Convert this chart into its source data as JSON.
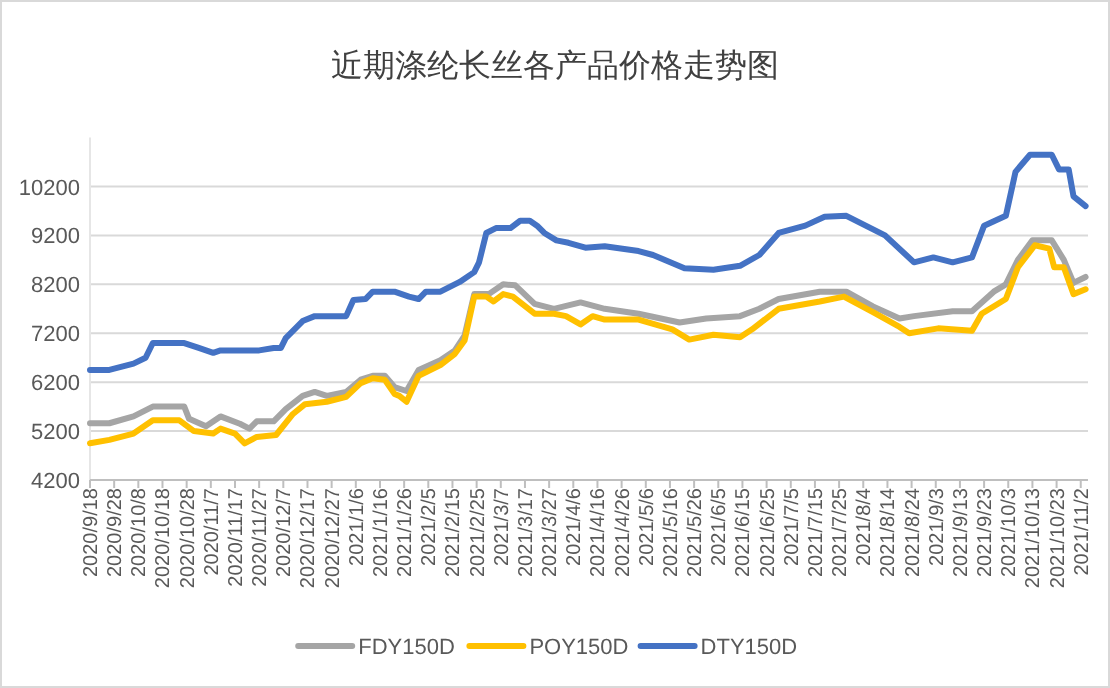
{
  "chart_data": {
    "type": "line",
    "title": "近期涤纶长丝各产品价格走势图",
    "legend": "bottom",
    "grid": "y",
    "marker": "none",
    "line_style": "solid",
    "xlim": [
      "2020-09-18",
      "2021-11-05"
    ],
    "ylim": [
      4200,
      11200
    ],
    "yticks": [
      4200,
      5200,
      6200,
      7200,
      8200,
      9200,
      10200
    ],
    "xticks": [
      {
        "value": "2020-09-18",
        "label": "2020/9/18"
      },
      {
        "value": "2020-09-28",
        "label": "2020/9/28"
      },
      {
        "value": "2020-10-08",
        "label": "2020/10/8"
      },
      {
        "value": "2020-10-18",
        "label": "2020/10/18"
      },
      {
        "value": "2020-10-28",
        "label": "2020/10/28"
      },
      {
        "value": "2020-11-07",
        "label": "2020/11/7"
      },
      {
        "value": "2020-11-17",
        "label": "2020/11/17"
      },
      {
        "value": "2020-11-27",
        "label": "2020/11/27"
      },
      {
        "value": "2020-12-07",
        "label": "2020/12/7"
      },
      {
        "value": "2020-12-17",
        "label": "2020/12/17"
      },
      {
        "value": "2020-12-27",
        "label": "2020/12/27"
      },
      {
        "value": "2021-01-06",
        "label": "2021/1/6"
      },
      {
        "value": "2021-01-16",
        "label": "2021/1/16"
      },
      {
        "value": "2021-01-26",
        "label": "2021/1/26"
      },
      {
        "value": "2021-02-05",
        "label": "2021/2/5"
      },
      {
        "value": "2021-02-15",
        "label": "2021/2/15"
      },
      {
        "value": "2021-02-25",
        "label": "2021/2/25"
      },
      {
        "value": "2021-03-07",
        "label": "2021/3/7"
      },
      {
        "value": "2021-03-17",
        "label": "2021/3/17"
      },
      {
        "value": "2021-03-27",
        "label": "2021/3/27"
      },
      {
        "value": "2021-04-06",
        "label": "2021/4/6"
      },
      {
        "value": "2021-04-16",
        "label": "2021/4/16"
      },
      {
        "value": "2021-04-26",
        "label": "2021/4/26"
      },
      {
        "value": "2021-05-06",
        "label": "2021/5/6"
      },
      {
        "value": "2021-05-16",
        "label": "2021/5/16"
      },
      {
        "value": "2021-05-26",
        "label": "2021/5/26"
      },
      {
        "value": "2021-06-05",
        "label": "2021/6/5"
      },
      {
        "value": "2021-06-15",
        "label": "2021/6/15"
      },
      {
        "value": "2021-06-25",
        "label": "2021/6/25"
      },
      {
        "value": "2021-07-05",
        "label": "2021/7/5"
      },
      {
        "value": "2021-07-15",
        "label": "2021/7/15"
      },
      {
        "value": "2021-07-25",
        "label": "2021/7/25"
      },
      {
        "value": "2021-08-04",
        "label": "2021/8/4"
      },
      {
        "value": "2021-08-14",
        "label": "2021/8/14"
      },
      {
        "value": "2021-08-24",
        "label": "2021/8/24"
      },
      {
        "value": "2021-09-03",
        "label": "2021/9/3"
      },
      {
        "value": "2021-09-13",
        "label": "2021/9/13"
      },
      {
        "value": "2021-09-23",
        "label": "2021/9/23"
      },
      {
        "value": "2021-10-03",
        "label": "2021/10/3"
      },
      {
        "value": "2021-10-13",
        "label": "2021/10/13"
      },
      {
        "value": "2021-10-23",
        "label": "2021/10/23"
      },
      {
        "value": "2021-11-02",
        "label": "2021/11/2"
      }
    ],
    "series": [
      {
        "name": "FDY150D",
        "color": "#a5a5a5",
        "x": [
          "2020-09-18",
          "2020-09-26",
          "2020-10-06",
          "2020-10-14",
          "2020-10-27",
          "2020-10-29",
          "2020-11-05",
          "2020-11-11",
          "2020-11-19",
          "2020-11-23",
          "2020-11-26",
          "2020-12-03",
          "2020-12-08",
          "2020-12-15",
          "2020-12-20",
          "2020-12-25",
          "2021-01-02",
          "2021-01-08",
          "2021-01-13",
          "2021-01-18",
          "2021-01-22",
          "2021-01-27",
          "2021-02-01",
          "2021-02-10",
          "2021-02-16",
          "2021-02-20",
          "2021-02-24",
          "2021-03-02",
          "2021-03-08",
          "2021-03-13",
          "2021-03-21",
          "2021-03-29",
          "2021-04-09",
          "2021-04-19",
          "2021-05-03",
          "2021-05-20",
          "2021-05-31",
          "2021-06-14",
          "2021-06-22",
          "2021-06-30",
          "2021-07-17",
          "2021-07-28",
          "2021-08-08",
          "2021-08-19",
          "2021-08-25",
          "2021-09-10",
          "2021-09-18",
          "2021-09-27",
          "2021-10-02",
          "2021-10-07",
          "2021-10-13",
          "2021-10-21",
          "2021-10-26",
          "2021-10-30",
          "2021-11-04"
        ],
        "values": [
          5360,
          5360,
          5500,
          5700,
          5700,
          5450,
          5300,
          5500,
          5350,
          5250,
          5400,
          5400,
          5650,
          5920,
          6000,
          5920,
          6000,
          6250,
          6330,
          6330,
          6100,
          6020,
          6450,
          6650,
          6850,
          7150,
          8000,
          8000,
          8200,
          8180,
          7800,
          7700,
          7830,
          7700,
          7600,
          7420,
          7500,
          7550,
          7700,
          7900,
          8050,
          8050,
          7750,
          7500,
          7550,
          7650,
          7650,
          8050,
          8200,
          8700,
          9100,
          9100,
          8700,
          8230,
          8350
        ]
      },
      {
        "name": "POY150D",
        "color": "#ffc000",
        "x": [
          "2020-09-18",
          "2020-09-26",
          "2020-10-06",
          "2020-10-14",
          "2020-10-25",
          "2020-10-31",
          "2020-11-08",
          "2020-11-11",
          "2020-11-17",
          "2020-11-21",
          "2020-11-26",
          "2020-12-04",
          "2020-12-11",
          "2020-12-16",
          "2020-12-25",
          "2021-01-02",
          "2021-01-08",
          "2021-01-13",
          "2021-01-18",
          "2021-01-22",
          "2021-01-24",
          "2021-01-27",
          "2021-02-01",
          "2021-02-10",
          "2021-02-16",
          "2021-02-20",
          "2021-02-24",
          "2021-03-01",
          "2021-03-04",
          "2021-03-08",
          "2021-03-12",
          "2021-03-21",
          "2021-03-29",
          "2021-04-03",
          "2021-04-09",
          "2021-04-14",
          "2021-04-19",
          "2021-05-03",
          "2021-05-17",
          "2021-05-24",
          "2021-06-03",
          "2021-06-14",
          "2021-06-19",
          "2021-06-30",
          "2021-07-17",
          "2021-07-27",
          "2021-08-08",
          "2021-08-19",
          "2021-08-23",
          "2021-09-04",
          "2021-09-18",
          "2021-09-22",
          "2021-10-02",
          "2021-10-07",
          "2021-10-14",
          "2021-10-20",
          "2021-10-22",
          "2021-10-26",
          "2021-10-30",
          "2021-11-04"
        ],
        "values": [
          4950,
          5020,
          5150,
          5420,
          5420,
          5200,
          5150,
          5250,
          5150,
          4950,
          5080,
          5120,
          5550,
          5750,
          5800,
          5900,
          6180,
          6280,
          6250,
          5960,
          5920,
          5800,
          6330,
          6550,
          6780,
          7050,
          7950,
          7950,
          7850,
          8000,
          7950,
          7600,
          7600,
          7550,
          7380,
          7550,
          7480,
          7480,
          7280,
          7070,
          7170,
          7120,
          7280,
          7700,
          7850,
          7950,
          7630,
          7330,
          7200,
          7300,
          7250,
          7600,
          7900,
          8550,
          9000,
          8930,
          8550,
          8550,
          8000,
          8100
        ]
      },
      {
        "name": "DTY150D",
        "color": "#4472c4",
        "x": [
          "2020-09-18",
          "2020-09-26",
          "2020-10-06",
          "2020-10-11",
          "2020-10-14",
          "2020-10-27",
          "2020-11-02",
          "2020-11-08",
          "2020-11-11",
          "2020-11-27",
          "2020-12-03",
          "2020-12-06",
          "2020-12-08",
          "2020-12-15",
          "2020-12-20",
          "2021-01-02",
          "2021-01-05",
          "2021-01-10",
          "2021-01-13",
          "2021-01-22",
          "2021-01-28",
          "2021-02-01",
          "2021-02-04",
          "2021-02-10",
          "2021-02-18",
          "2021-02-24",
          "2021-02-26",
          "2021-03-01",
          "2021-03-05",
          "2021-03-11",
          "2021-03-15",
          "2021-03-19",
          "2021-03-22",
          "2021-03-25",
          "2021-03-30",
          "2021-04-04",
          "2021-04-11",
          "2021-04-19",
          "2021-05-03",
          "2021-05-09",
          "2021-05-22",
          "2021-06-03",
          "2021-06-14",
          "2021-06-22",
          "2021-06-30",
          "2021-07-11",
          "2021-07-19",
          "2021-07-28",
          "2021-08-05",
          "2021-08-13",
          "2021-08-25",
          "2021-09-02",
          "2021-09-10",
          "2021-09-18",
          "2021-09-23",
          "2021-10-02",
          "2021-10-06",
          "2021-10-12",
          "2021-10-21",
          "2021-10-24",
          "2021-10-28",
          "2021-10-30",
          "2021-11-04"
        ],
        "values": [
          6450,
          6450,
          6580,
          6700,
          7000,
          7000,
          6900,
          6800,
          6850,
          6850,
          6900,
          6900,
          7100,
          7450,
          7550,
          7550,
          7880,
          7900,
          8050,
          8050,
          7950,
          7900,
          8050,
          8050,
          8250,
          8450,
          8650,
          9250,
          9350,
          9350,
          9500,
          9500,
          9400,
          9250,
          9100,
          9050,
          8950,
          8980,
          8880,
          8800,
          8530,
          8500,
          8580,
          8800,
          9250,
          9400,
          9580,
          9600,
          9400,
          9200,
          8650,
          8750,
          8650,
          8750,
          9400,
          9600,
          10500,
          10850,
          10850,
          10550,
          10550,
          10000,
          9800
        ]
      }
    ]
  }
}
